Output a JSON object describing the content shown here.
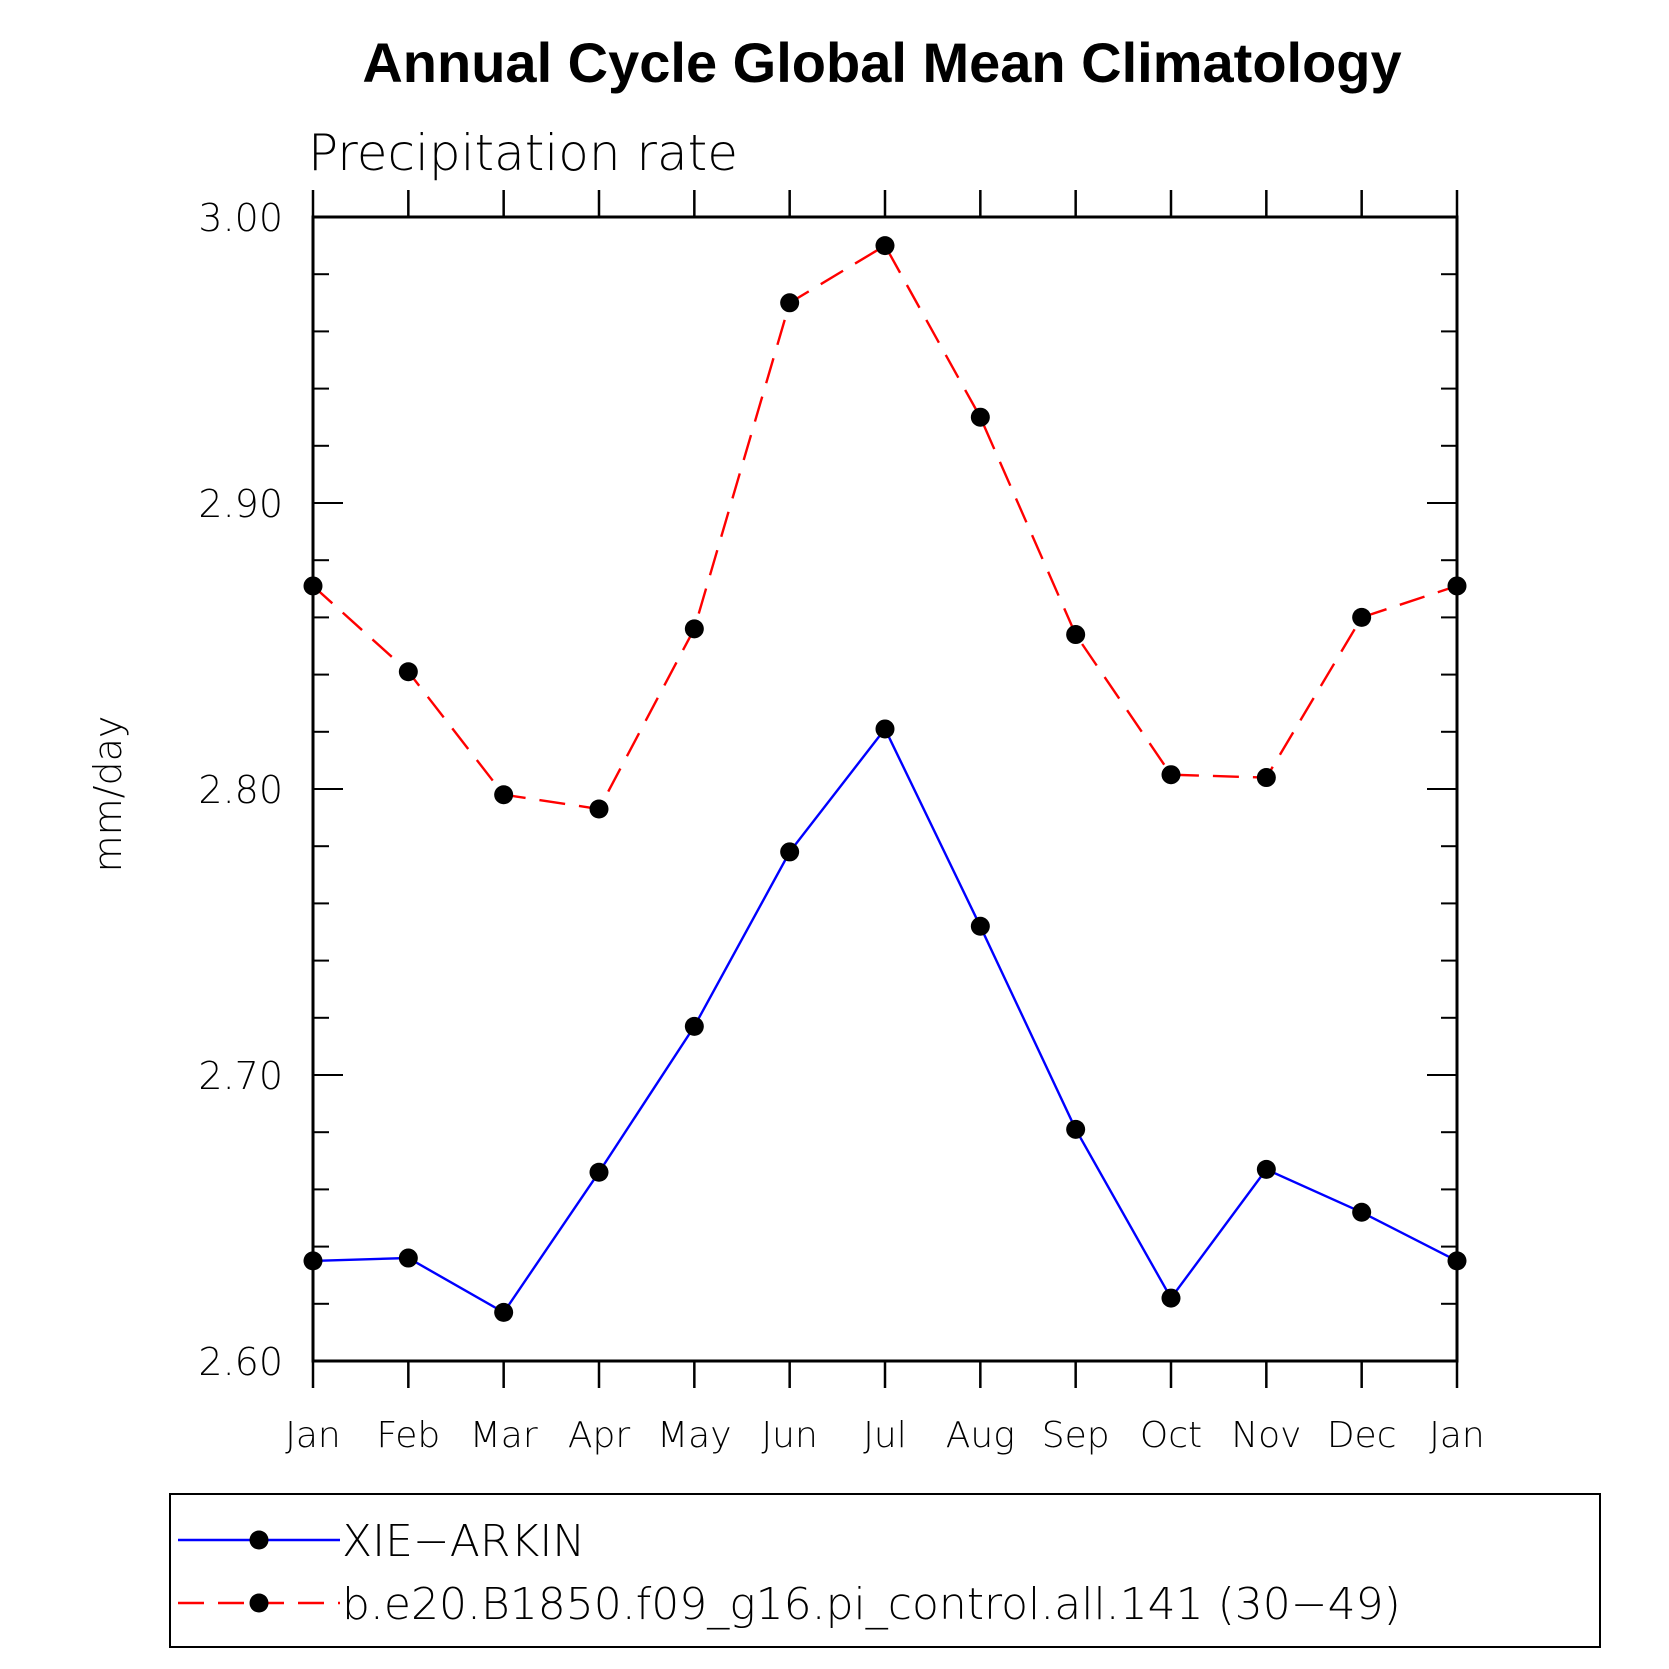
{
  "chart_data": {
    "type": "line",
    "title": "Annual Cycle Global Mean Climatology",
    "subtitle": "Precipitation rate",
    "xlabel": "",
    "ylabel": "mm/day",
    "categories": [
      "Jan",
      "Feb",
      "Mar",
      "Apr",
      "May",
      "Jun",
      "Jul",
      "Aug",
      "Sep",
      "Oct",
      "Nov",
      "Dec",
      "Jan"
    ],
    "ylim": [
      2.6,
      3.0
    ],
    "yticks": [
      "2.60",
      "2.70",
      "2.80",
      "2.90",
      "3.00"
    ],
    "grid": false,
    "legend_position": "bottom",
    "series": [
      {
        "name": "XIE−ARKIN",
        "color": "#0000ff",
        "linestyle": "solid",
        "marker": "dot",
        "values": [
          2.635,
          2.636,
          2.617,
          2.666,
          2.717,
          2.778,
          2.821,
          2.752,
          2.681,
          2.622,
          2.667,
          2.652,
          2.635
        ]
      },
      {
        "name": "b.e20.B1850.f09_g16.pi_control.all.141 (30−49)",
        "color": "#ff0000",
        "linestyle": "dashed",
        "marker": "dot",
        "values": [
          2.871,
          2.841,
          2.798,
          2.793,
          2.856,
          2.97,
          2.99,
          2.93,
          2.854,
          2.805,
          2.804,
          2.86,
          2.871
        ]
      }
    ]
  }
}
